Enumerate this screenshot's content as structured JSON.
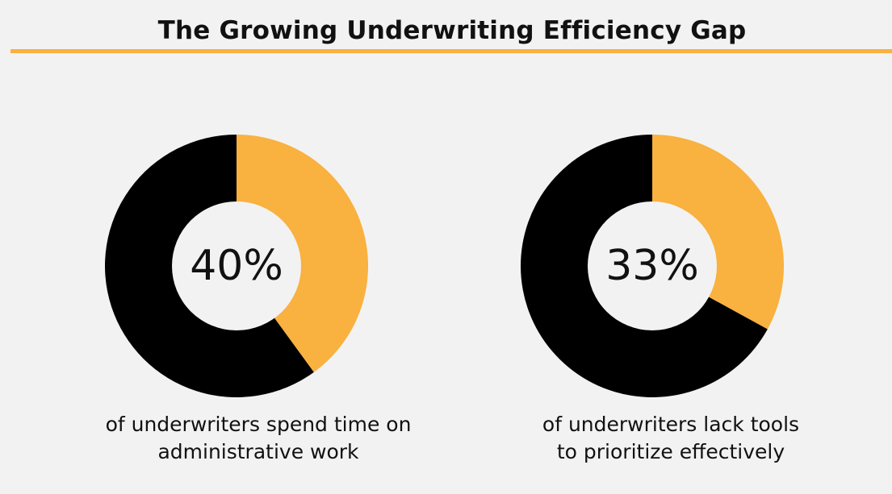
{
  "title": "The Growing Underwriting Efficiency Gap",
  "colors": {
    "accent": "#f9b13f",
    "dark": "#000000",
    "center": "#f2f2f2",
    "background": "#f2f2f2"
  },
  "chart_data": [
    {
      "type": "pie",
      "values": [
        40,
        60
      ],
      "center_label": "40%",
      "caption_lines": [
        "of underwriters spend time on",
        "administrative work"
      ]
    },
    {
      "type": "pie",
      "values": [
        33,
        67
      ],
      "center_label": "33%",
      "caption_lines": [
        "of underwriters lack tools",
        "to prioritize effectively"
      ]
    }
  ]
}
